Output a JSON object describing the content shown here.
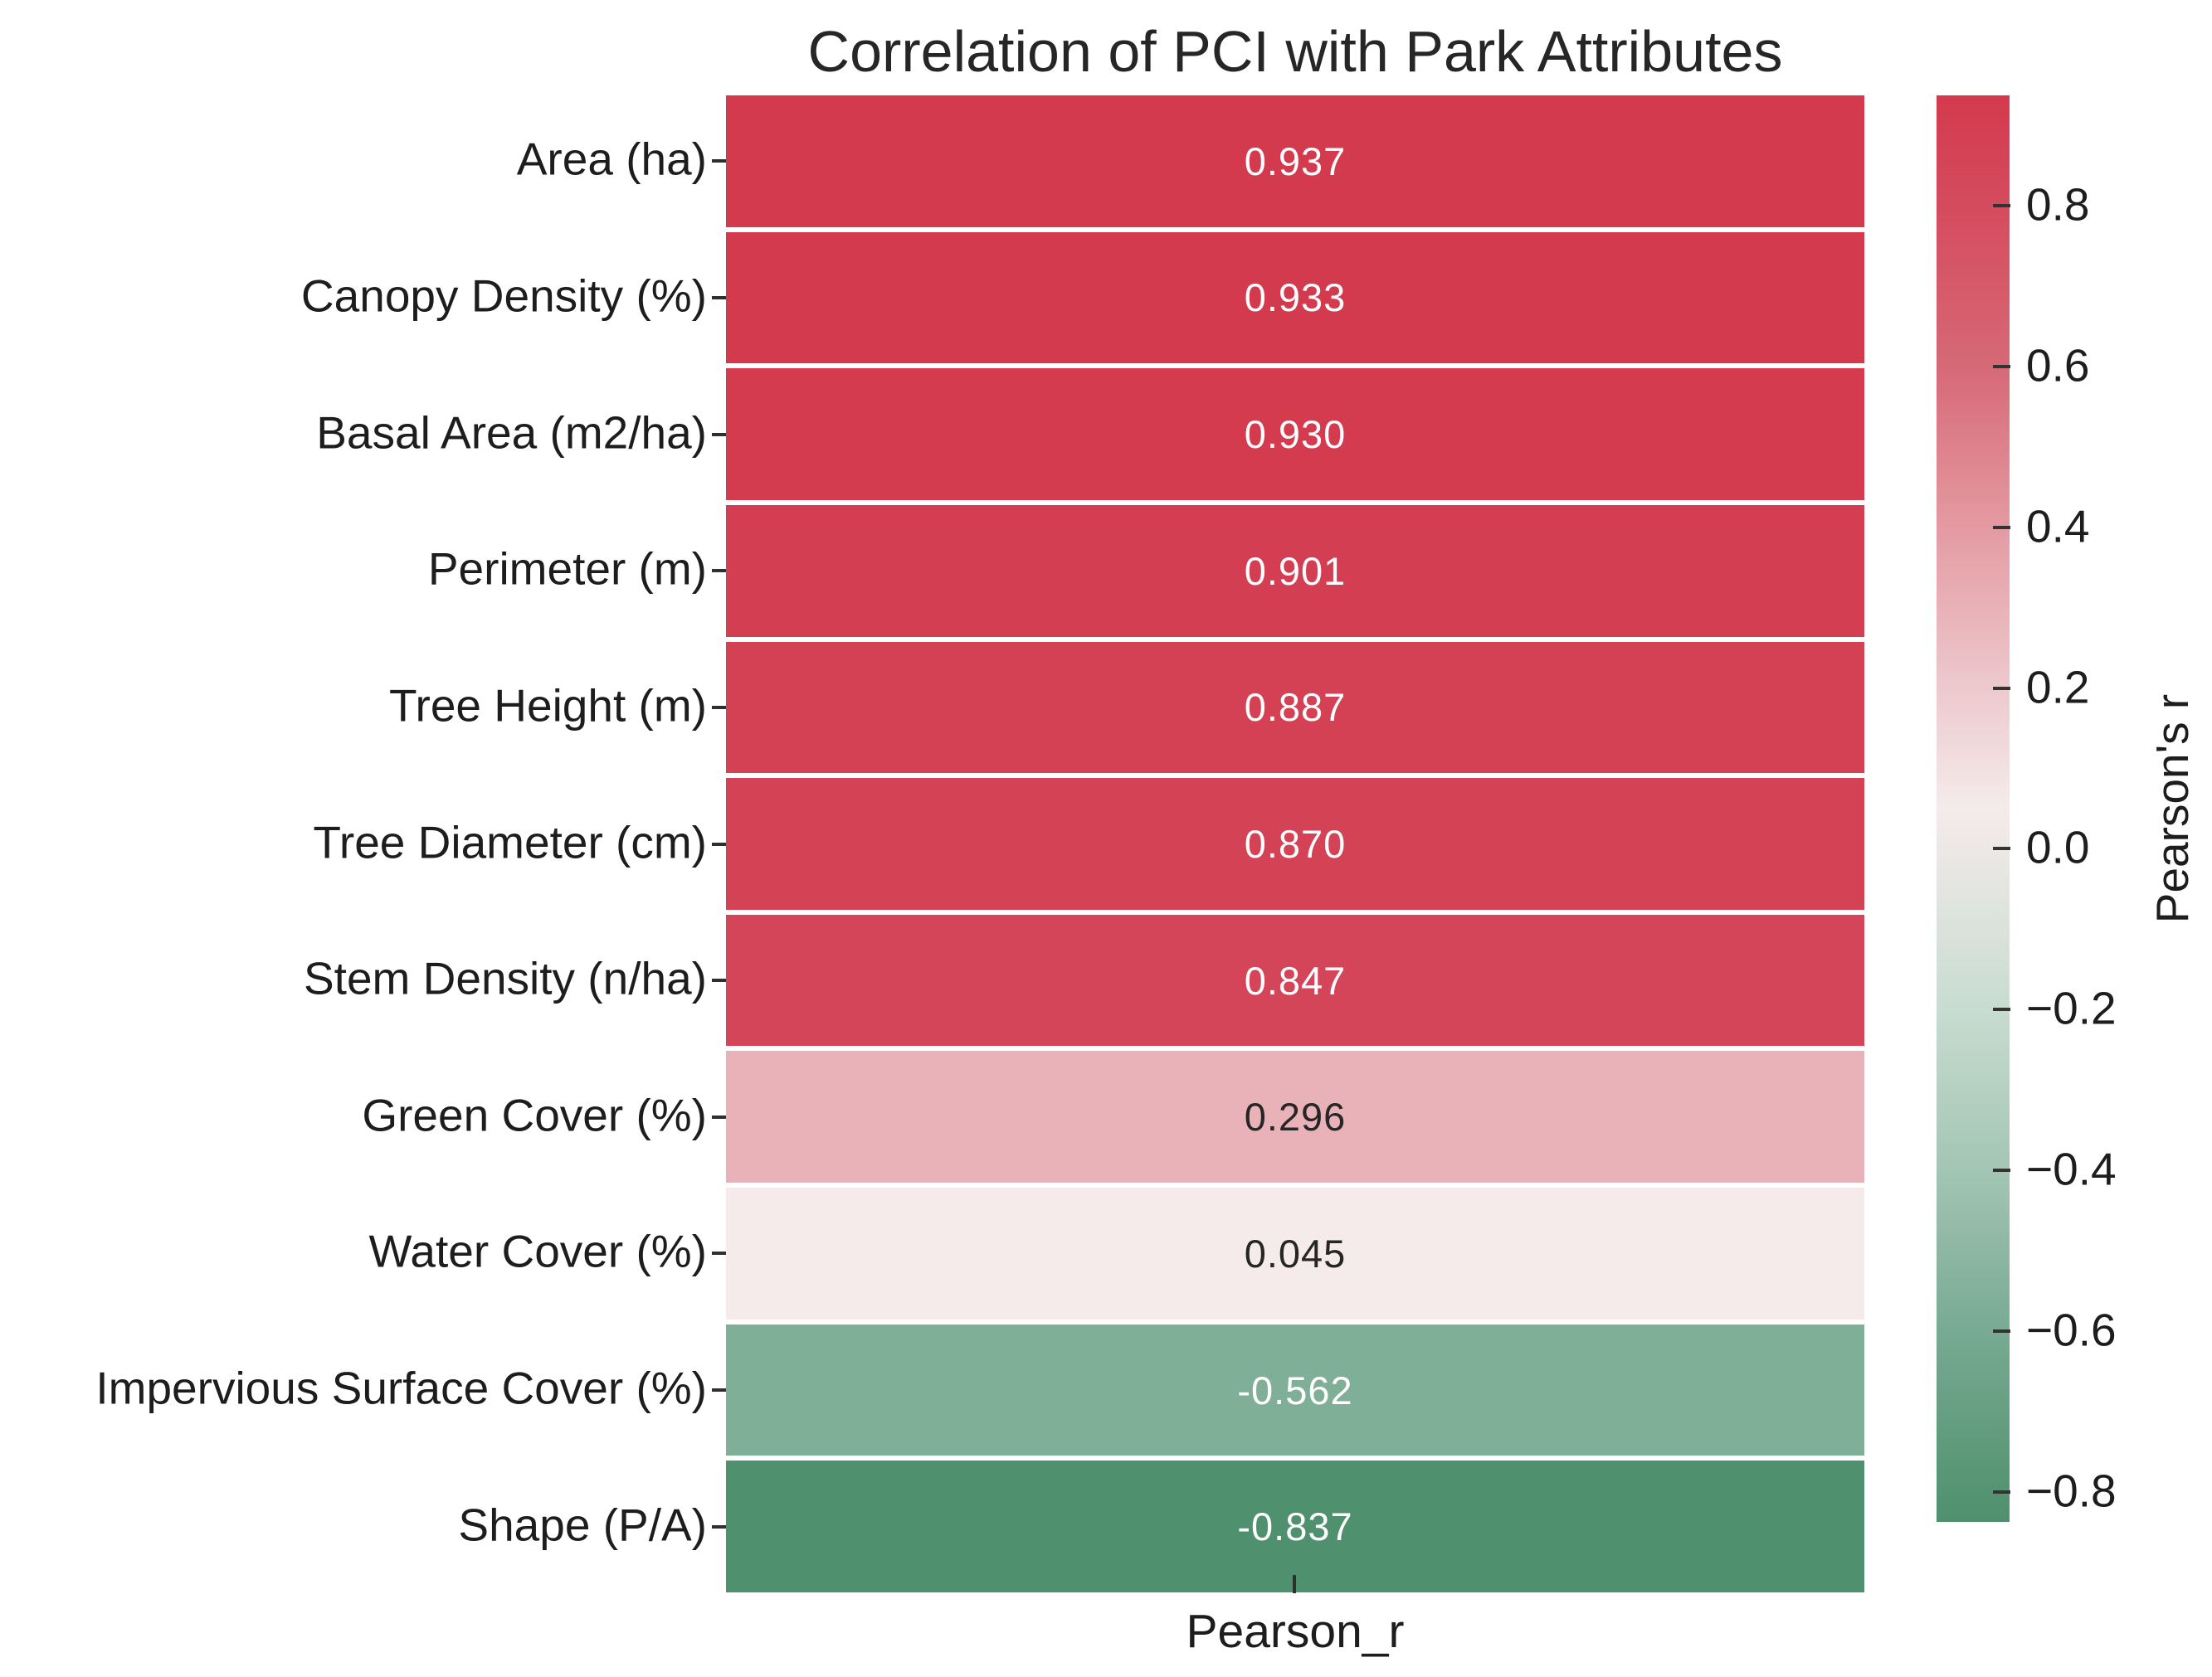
{
  "title": "Correlation of PCI with Park Attributes",
  "chart_data": {
    "type": "heatmap",
    "title": "Correlation of PCI with Park Attributes",
    "xlabel": "Pearson_r",
    "columns": [
      "Pearson_r"
    ],
    "rows": [
      {
        "label": "Area (ha)",
        "value": 0.937,
        "display": "0.937"
      },
      {
        "label": "Canopy Density (%)",
        "value": 0.933,
        "display": "0.933"
      },
      {
        "label": "Basal Area (m2/ha)",
        "value": 0.93,
        "display": "0.930"
      },
      {
        "label": "Perimeter (m)",
        "value": 0.901,
        "display": "0.901"
      },
      {
        "label": "Tree Height (m)",
        "value": 0.887,
        "display": "0.887"
      },
      {
        "label": "Tree Diameter (cm)",
        "value": 0.87,
        "display": "0.870"
      },
      {
        "label": "Stem Density (n/ha)",
        "value": 0.847,
        "display": "0.847"
      },
      {
        "label": "Green Cover (%)",
        "value": 0.296,
        "display": "0.296"
      },
      {
        "label": "Water Cover (%)",
        "value": 0.045,
        "display": "0.045"
      },
      {
        "label": "Impervious Surface Cover (%)",
        "value": -0.562,
        "display": "-0.562"
      },
      {
        "label": "Shape (P/A)",
        "value": -0.837,
        "display": "-0.837"
      }
    ],
    "vmin": -0.837,
    "vmax": 0.937,
    "grid": false,
    "legend_position": "right-colorbar",
    "colorbar_label": "Pearson's r",
    "colorbar_ticks": [
      {
        "value": 0.8,
        "label": "0.8"
      },
      {
        "value": 0.6,
        "label": "0.6"
      },
      {
        "value": 0.4,
        "label": "0.4"
      },
      {
        "value": 0.2,
        "label": "0.2"
      },
      {
        "value": 0.0,
        "label": "0.0"
      },
      {
        "value": -0.2,
        "label": "−0.2"
      },
      {
        "value": -0.4,
        "label": "−0.4"
      },
      {
        "value": -0.6,
        "label": "−0.6"
      },
      {
        "value": -0.8,
        "label": "−0.8"
      }
    ],
    "colormap_stops": [
      {
        "value": 0.937,
        "color": [
          212,
          58,
          78
        ]
      },
      {
        "value": 0.8,
        "color": [
          213,
          75,
          94
        ]
      },
      {
        "value": 0.6,
        "color": [
          214,
          105,
          118
        ]
      },
      {
        "value": 0.4,
        "color": [
          228,
          154,
          162
        ]
      },
      {
        "value": 0.2,
        "color": [
          237,
          201,
          205
        ]
      },
      {
        "value": 0.05,
        "color": [
          245,
          235,
          235
        ]
      },
      {
        "value": -0.2,
        "color": [
          200,
          220,
          209
        ]
      },
      {
        "value": -0.4,
        "color": [
          163,
          197,
          180
        ]
      },
      {
        "value": -0.6,
        "color": [
          120,
          170,
          146
        ]
      },
      {
        "value": -0.8,
        "color": [
          85,
          148,
          114
        ]
      },
      {
        "value": -0.837,
        "color": [
          79,
          144,
          110
        ]
      }
    ]
  },
  "colors": {
    "background": "#ffffff",
    "annot_light": "#ffffff",
    "annot_dark": "#262626",
    "tick": "#2f2f2f",
    "label_text": "#1d1d1d",
    "cell_gap": "#ffffff"
  }
}
